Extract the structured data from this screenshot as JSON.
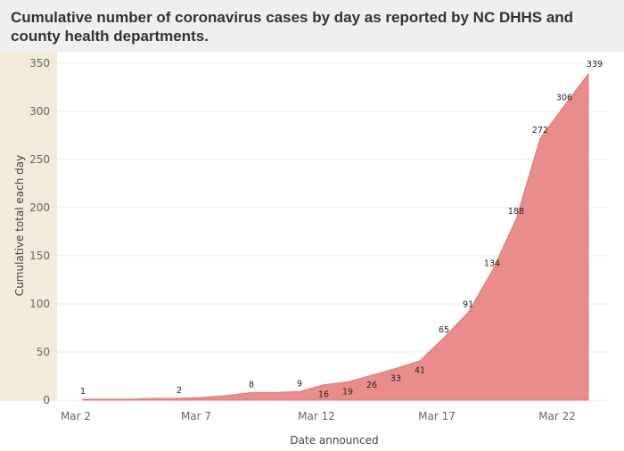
{
  "header": {
    "title": "Cumulative number of coronavirus cases by day as reported by NC DHHS and county health departments."
  },
  "colors": {
    "area_fill": "#e98c8c",
    "area_line": "#e07a7a",
    "y_band": "#f3ead9",
    "title_bg": "#efefef",
    "grid": "#ececec"
  },
  "chart_data": {
    "type": "area",
    "title": "Cumulative number of coronavirus cases by day as reported by NC DHHS and county health departments.",
    "xlabel": "Date announced",
    "ylabel": "Cumulative total each day",
    "ylim": [
      0,
      350
    ],
    "yticks": [
      0,
      50,
      100,
      150,
      200,
      250,
      300,
      350
    ],
    "xticks": [
      "Mar 2",
      "Mar 7",
      "Mar 12",
      "Mar 17",
      "Mar 22"
    ],
    "grid": true,
    "legend": "none",
    "series": [
      {
        "x": [
          "Mar 2",
          "Mar 3",
          "Mar 4",
          "Mar 5",
          "Mar 6",
          "Mar 7",
          "Mar 8",
          "Mar 9",
          "Mar 10",
          "Mar 11",
          "Mar 12",
          "Mar 13",
          "Mar 14",
          "Mar 15",
          "Mar 16",
          "Mar 17",
          "Mar 18",
          "Mar 19",
          "Mar 20",
          "Mar 21",
          "Mar 22",
          "Mar 23"
        ],
        "values": [
          1,
          1,
          1,
          2,
          2,
          3,
          5,
          8,
          8,
          9,
          16,
          19,
          26,
          33,
          41,
          65,
          91,
          134,
          188,
          272,
          306,
          339
        ],
        "labels": [
          {
            "x": "Mar 2",
            "text": "1"
          },
          {
            "x": "Mar 6",
            "text": "2"
          },
          {
            "x": "Mar 9",
            "text": "8"
          },
          {
            "x": "Mar 11",
            "text": "9"
          },
          {
            "x": "Mar 12",
            "text": "16"
          },
          {
            "x": "Mar 13",
            "text": "19"
          },
          {
            "x": "Mar 14",
            "text": "26"
          },
          {
            "x": "Mar 15",
            "text": "33"
          },
          {
            "x": "Mar 16",
            "text": "41"
          },
          {
            "x": "Mar 17",
            "text": "65"
          },
          {
            "x": "Mar 18",
            "text": "91"
          },
          {
            "x": "Mar 19",
            "text": "134"
          },
          {
            "x": "Mar 20",
            "text": "188"
          },
          {
            "x": "Mar 21",
            "text": "272"
          },
          {
            "x": "Mar 22",
            "text": "306"
          },
          {
            "x": "Mar 23",
            "text": "339"
          }
        ]
      }
    ]
  }
}
